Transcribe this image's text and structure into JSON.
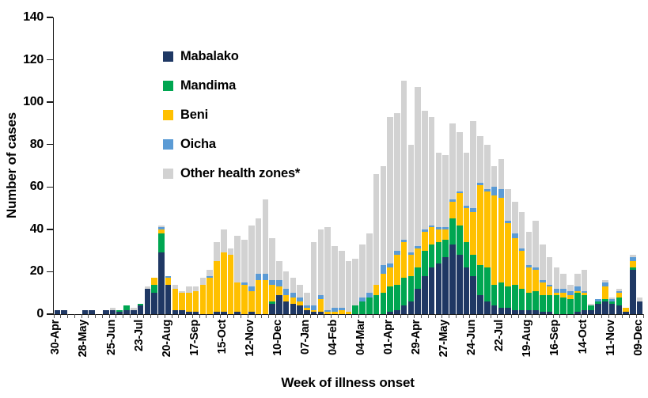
{
  "chart_data": {
    "type": "bar",
    "stacked": true,
    "title": "",
    "xlabel": "Week of illness onset",
    "ylabel": "Number of cases",
    "ylim": [
      0,
      140
    ],
    "y_ticks": [
      0,
      20,
      40,
      60,
      80,
      100,
      120,
      140
    ],
    "grid": false,
    "legend_position": "top-left-inside",
    "n_weeks": 85,
    "x_tick_label_every": 4,
    "x_major_labels": [
      "30-Apr",
      "28-May",
      "25-Jun",
      "23-Jul",
      "20-Aug",
      "17-Sep",
      "15-Oct",
      "12-Nov",
      "10-Dec",
      "07-Jan",
      "04-Feb",
      "04-Mar",
      "01-Apr",
      "29-Apr",
      "27-May",
      "24-Jun",
      "22-Jul",
      "19-Aug",
      "16-Sep",
      "14-Oct",
      "11-Nov",
      "09-Dec"
    ],
    "axis_color": "#1a1a1a",
    "series": [
      {
        "name": "Mabalako",
        "color": "#1f3864",
        "values": [
          2,
          2,
          0,
          0,
          2,
          2,
          0,
          2,
          2,
          1,
          2,
          2,
          4,
          12,
          10,
          29,
          14,
          2,
          2,
          1,
          1,
          0,
          0,
          1,
          1,
          0,
          1,
          0,
          1,
          0,
          0,
          5,
          9,
          6,
          5,
          4,
          2,
          1,
          1,
          0,
          0,
          0,
          0,
          0,
          0,
          0,
          0,
          0,
          1,
          2,
          4,
          6,
          12,
          18,
          22,
          24,
          27,
          33,
          28,
          22,
          18,
          9,
          6,
          4,
          3,
          3,
          2,
          2,
          2,
          2,
          1,
          1,
          0,
          0,
          0,
          1,
          2,
          2,
          5,
          6,
          5,
          4,
          1,
          21,
          6
        ]
      },
      {
        "name": "Mandima",
        "color": "#00a651",
        "values": [
          0,
          0,
          0,
          0,
          0,
          0,
          0,
          0,
          0,
          1,
          2,
          0,
          1,
          0,
          4,
          9,
          0,
          0,
          0,
          0,
          0,
          0,
          0,
          0,
          0,
          0,
          0,
          0,
          0,
          0,
          0,
          1,
          0,
          0,
          0,
          0,
          0,
          0,
          0,
          0,
          0,
          0,
          0,
          4,
          6,
          8,
          9,
          10,
          12,
          12,
          13,
          12,
          10,
          12,
          11,
          10,
          8,
          12,
          14,
          12,
          10,
          14,
          16,
          10,
          12,
          10,
          12,
          10,
          8,
          9,
          8,
          8,
          9,
          8,
          7,
          9,
          7,
          2,
          1,
          1,
          1,
          4,
          0,
          1,
          0
        ]
      },
      {
        "name": "Beni",
        "color": "#ffc000",
        "values": [
          0,
          0,
          0,
          0,
          0,
          0,
          0,
          0,
          0,
          0,
          0,
          0,
          0,
          0,
          3,
          2,
          3,
          10,
          8,
          9,
          10,
          14,
          17,
          24,
          28,
          28,
          14,
          14,
          10,
          16,
          16,
          8,
          4,
          3,
          3,
          2,
          1,
          1,
          6,
          1,
          1,
          2,
          1,
          0,
          0,
          0,
          5,
          9,
          9,
          14,
          17,
          10,
          9,
          9,
          8,
          6,
          5,
          8,
          15,
          16,
          20,
          38,
          36,
          42,
          40,
          30,
          22,
          18,
          12,
          10,
          6,
          4,
          1,
          2,
          2,
          1,
          1,
          0,
          0,
          6,
          0,
          2,
          2,
          3,
          0
        ]
      },
      {
        "name": "Oicha",
        "color": "#5b9bd5",
        "values": [
          0,
          0,
          0,
          0,
          0,
          0,
          0,
          0,
          0,
          0,
          0,
          0,
          0,
          0,
          0,
          1,
          1,
          0,
          0,
          0,
          0,
          0,
          1,
          0,
          0,
          0,
          0,
          1,
          2,
          3,
          3,
          2,
          3,
          3,
          2,
          2,
          1,
          2,
          2,
          1,
          2,
          1,
          0,
          0,
          2,
          2,
          0,
          4,
          2,
          2,
          1,
          1,
          1,
          1,
          1,
          1,
          1,
          1,
          1,
          1,
          2,
          1,
          1,
          4,
          4,
          1,
          2,
          1,
          1,
          1,
          1,
          1,
          2,
          2,
          2,
          2,
          1,
          0,
          1,
          2,
          1,
          1,
          0,
          2,
          0
        ]
      },
      {
        "name": "Other health zones*",
        "color": "#d2d2d2",
        "values": [
          0,
          0,
          0,
          0,
          0,
          0,
          0,
          0,
          1,
          0,
          0,
          1,
          0,
          1,
          0,
          1,
          0,
          2,
          1,
          3,
          2,
          3,
          3,
          9,
          11,
          3,
          22,
          20,
          29,
          26,
          35,
          20,
          9,
          8,
          7,
          6,
          6,
          30,
          31,
          39,
          29,
          27,
          24,
          22,
          25,
          28,
          52,
          47,
          69,
          65,
          75,
          51,
          75,
          56,
          51,
          35,
          34,
          36,
          28,
          25,
          41,
          22,
          21,
          10,
          14,
          15,
          15,
          17,
          16,
          22,
          17,
          13,
          10,
          7,
          3,
          6,
          10,
          1,
          0,
          1,
          1,
          1,
          0,
          1,
          2
        ]
      }
    ]
  }
}
